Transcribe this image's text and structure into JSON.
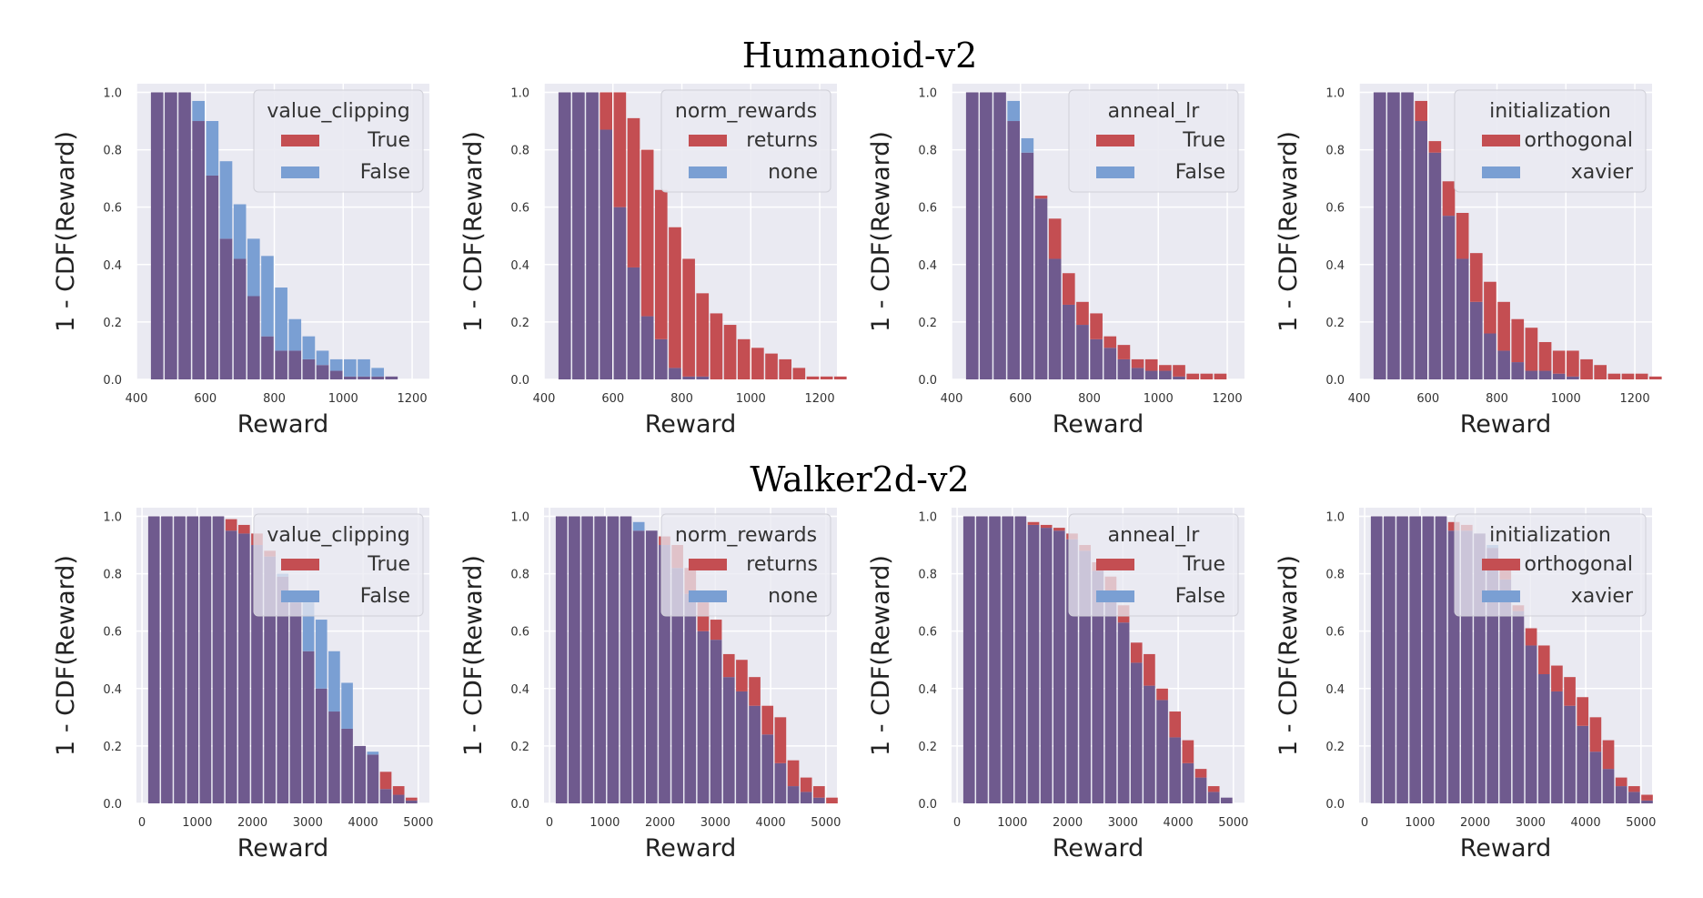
{
  "figure": {
    "row_titles": [
      "Humanoid-v2",
      "Walker2d-v2"
    ]
  },
  "colors": {
    "panel_bg": "#eaeaf2",
    "grid": "#ffffff",
    "series_red": "#c44e52",
    "series_blue": "#7a9fd3",
    "overlap": "#6f5a8e"
  },
  "chart_data": [
    {
      "type": "bar",
      "environment": "Humanoid-v2",
      "x_edges_start": 440,
      "bin_width": 40,
      "xlim": [
        400,
        1250
      ],
      "xticks": [
        400,
        600,
        800,
        1000,
        1200
      ],
      "ylim": [
        0,
        1.03
      ],
      "yticks": [
        "0.0",
        "0.2",
        "0.4",
        "0.6",
        "0.8",
        "1.0"
      ],
      "xlabel": "Reward",
      "ylabel": "1 - CDF(Reward)",
      "legend": {
        "title": "value_clipping",
        "placement": "upper-right",
        "overlaps_bars": false
      },
      "grid": true,
      "series": [
        {
          "name": "True",
          "color": "red",
          "values": [
            1.0,
            1.0,
            1.0,
            0.9,
            0.71,
            0.49,
            0.42,
            0.29,
            0.15,
            0.1,
            0.1,
            0.07,
            0.05,
            0.03,
            0.01,
            0.01,
            0.01,
            0.01,
            0,
            0,
            0,
            0
          ]
        },
        {
          "name": "False",
          "color": "blue",
          "values": [
            1.0,
            1.0,
            1.0,
            0.97,
            0.9,
            0.76,
            0.61,
            0.49,
            0.43,
            0.32,
            0.21,
            0.15,
            0.1,
            0.07,
            0.07,
            0.07,
            0.04,
            0.01,
            0,
            0,
            0,
            0
          ]
        }
      ]
    },
    {
      "type": "bar",
      "environment": "Humanoid-v2",
      "x_edges_start": 440,
      "bin_width": 40,
      "xlim": [
        400,
        1250
      ],
      "xticks": [
        400,
        600,
        800,
        1000,
        1200
      ],
      "ylim": [
        0,
        1.03
      ],
      "yticks": [
        "0.0",
        "0.2",
        "0.4",
        "0.6",
        "0.8",
        "1.0"
      ],
      "xlabel": "Reward",
      "ylabel": "1 - CDF(Reward)",
      "legend": {
        "title": "norm_rewards",
        "placement": "upper-right",
        "overlaps_bars": false
      },
      "grid": true,
      "series": [
        {
          "name": "returns",
          "color": "red",
          "values": [
            1.0,
            1.0,
            1.0,
            1.0,
            1.0,
            0.91,
            0.8,
            0.66,
            0.53,
            0.42,
            0.3,
            0.23,
            0.19,
            0.14,
            0.11,
            0.09,
            0.07,
            0.04,
            0.01,
            0.01,
            0.01
          ]
        },
        {
          "name": "none",
          "color": "blue",
          "values": [
            1.0,
            1.0,
            1.0,
            0.87,
            0.6,
            0.39,
            0.22,
            0.14,
            0.04,
            0.01,
            0.01,
            0,
            0,
            0,
            0,
            0,
            0,
            0,
            0,
            0,
            0
          ]
        }
      ]
    },
    {
      "type": "bar",
      "environment": "Humanoid-v2",
      "x_edges_start": 440,
      "bin_width": 40,
      "xlim": [
        400,
        1250
      ],
      "xticks": [
        400,
        600,
        800,
        1000,
        1200
      ],
      "ylim": [
        0,
        1.03
      ],
      "yticks": [
        "0.0",
        "0.2",
        "0.4",
        "0.6",
        "0.8",
        "1.0"
      ],
      "xlabel": "Reward",
      "ylabel": "1 - CDF(Reward)",
      "legend": {
        "title": "anneal_lr",
        "placement": "upper-right",
        "overlaps_bars": false
      },
      "grid": true,
      "series": [
        {
          "name": "True",
          "color": "red",
          "values": [
            1.0,
            1.0,
            1.0,
            0.9,
            0.79,
            0.64,
            0.56,
            0.37,
            0.27,
            0.23,
            0.15,
            0.12,
            0.07,
            0.07,
            0.05,
            0.05,
            0.02,
            0.02,
            0.02,
            0,
            0
          ]
        },
        {
          "name": "False",
          "color": "blue",
          "values": [
            1.0,
            1.0,
            1.0,
            0.97,
            0.84,
            0.63,
            0.42,
            0.26,
            0.19,
            0.14,
            0.11,
            0.07,
            0.04,
            0.03,
            0.03,
            0.01,
            0,
            0,
            0,
            0,
            0
          ]
        }
      ]
    },
    {
      "type": "bar",
      "environment": "Humanoid-v2",
      "x_edges_start": 440,
      "bin_width": 40,
      "xlim": [
        400,
        1250
      ],
      "xticks": [
        400,
        600,
        800,
        1000,
        1200
      ],
      "ylim": [
        0,
        1.03
      ],
      "yticks": [
        "0.0",
        "0.2",
        "0.4",
        "0.6",
        "0.8",
        "1.0"
      ],
      "xlabel": "Reward",
      "ylabel": "1 - CDF(Reward)",
      "legend": {
        "title": "initialization",
        "placement": "upper-right",
        "overlaps_bars": false
      },
      "grid": true,
      "series": [
        {
          "name": "orthogonal",
          "color": "red",
          "values": [
            1.0,
            1.0,
            1.0,
            0.97,
            0.83,
            0.69,
            0.58,
            0.44,
            0.34,
            0.27,
            0.21,
            0.18,
            0.13,
            0.1,
            0.1,
            0.07,
            0.05,
            0.02,
            0.02,
            0.02,
            0.01
          ]
        },
        {
          "name": "xavier",
          "color": "blue",
          "values": [
            1.0,
            1.0,
            1.0,
            0.9,
            0.79,
            0.57,
            0.42,
            0.27,
            0.16,
            0.1,
            0.06,
            0.03,
            0.03,
            0.02,
            0.01,
            0,
            0,
            0,
            0,
            0,
            0
          ]
        }
      ]
    },
    {
      "type": "bar",
      "environment": "Walker2d-v2",
      "x_edges_start": 100,
      "bin_width": 233,
      "xlim": [
        -100,
        5200
      ],
      "xticks": [
        0,
        1000,
        2000,
        3000,
        4000,
        5000
      ],
      "ylim": [
        0,
        1.03
      ],
      "yticks": [
        "0.0",
        "0.2",
        "0.4",
        "0.6",
        "0.8",
        "1.0"
      ],
      "xlabel": "Reward",
      "ylabel": "1 - CDF(Reward)",
      "legend": {
        "title": "value_clipping",
        "placement": "upper-right",
        "overlaps_bars": true
      },
      "grid": true,
      "series": [
        {
          "name": "True",
          "color": "red",
          "values": [
            1.0,
            1.0,
            1.0,
            1.0,
            1.0,
            1.0,
            0.99,
            0.97,
            0.94,
            0.88,
            0.79,
            0.7,
            0.53,
            0.4,
            0.32,
            0.26,
            0.2,
            0.17,
            0.11,
            0.06,
            0.02,
            0
          ]
        },
        {
          "name": "False",
          "color": "blue",
          "values": [
            1.0,
            1.0,
            1.0,
            1.0,
            1.0,
            1.0,
            0.95,
            0.94,
            0.9,
            0.86,
            0.8,
            0.74,
            0.7,
            0.64,
            0.53,
            0.42,
            0.2,
            0.18,
            0.05,
            0.03,
            0.01,
            0
          ]
        }
      ]
    },
    {
      "type": "bar",
      "environment": "Walker2d-v2",
      "x_edges_start": 100,
      "bin_width": 233,
      "xlim": [
        -100,
        5200
      ],
      "xticks": [
        0,
        1000,
        2000,
        3000,
        4000,
        5000
      ],
      "ylim": [
        0,
        1.03
      ],
      "yticks": [
        "0.0",
        "0.2",
        "0.4",
        "0.6",
        "0.8",
        "1.0"
      ],
      "xlabel": "Reward",
      "ylabel": "1 - CDF(Reward)",
      "legend": {
        "title": "norm_rewards",
        "placement": "upper-right",
        "overlaps_bars": true
      },
      "grid": true,
      "series": [
        {
          "name": "returns",
          "color": "red",
          "values": [
            1.0,
            1.0,
            1.0,
            1.0,
            1.0,
            1.0,
            0.95,
            0.95,
            0.93,
            0.9,
            0.82,
            0.7,
            0.64,
            0.52,
            0.5,
            0.44,
            0.34,
            0.3,
            0.15,
            0.09,
            0.06,
            0.02
          ]
        },
        {
          "name": "none",
          "color": "blue",
          "values": [
            1.0,
            1.0,
            1.0,
            1.0,
            1.0,
            1.0,
            0.98,
            0.95,
            0.9,
            0.82,
            0.73,
            0.6,
            0.57,
            0.44,
            0.39,
            0.34,
            0.24,
            0.14,
            0.06,
            0.04,
            0.02,
            0
          ]
        }
      ]
    },
    {
      "type": "bar",
      "environment": "Walker2d-v2",
      "x_edges_start": 100,
      "bin_width": 233,
      "xlim": [
        -100,
        5200
      ],
      "xticks": [
        0,
        1000,
        2000,
        3000,
        4000,
        5000
      ],
      "ylim": [
        0,
        1.03
      ],
      "yticks": [
        "0.0",
        "0.2",
        "0.4",
        "0.6",
        "0.8",
        "1.0"
      ],
      "xlabel": "Reward",
      "ylabel": "1 - CDF(Reward)",
      "legend": {
        "title": "anneal_lr",
        "placement": "upper-right",
        "overlaps_bars": true
      },
      "grid": true,
      "series": [
        {
          "name": "True",
          "color": "red",
          "values": [
            1.0,
            1.0,
            1.0,
            1.0,
            1.0,
            0.98,
            0.97,
            0.96,
            0.94,
            0.9,
            0.84,
            0.79,
            0.69,
            0.56,
            0.52,
            0.4,
            0.32,
            0.22,
            0.12,
            0.06,
            0.02,
            0
          ]
        },
        {
          "name": "False",
          "color": "blue",
          "values": [
            1.0,
            1.0,
            1.0,
            1.0,
            1.0,
            0.97,
            0.96,
            0.95,
            0.92,
            0.88,
            0.81,
            0.73,
            0.63,
            0.49,
            0.41,
            0.36,
            0.23,
            0.14,
            0.09,
            0.04,
            0.02,
            0
          ]
        }
      ]
    },
    {
      "type": "bar",
      "environment": "Walker2d-v2",
      "x_edges_start": 100,
      "bin_width": 233,
      "xlim": [
        -100,
        5200
      ],
      "xticks": [
        0,
        1000,
        2000,
        3000,
        4000,
        5000
      ],
      "ylim": [
        0,
        1.03
      ],
      "yticks": [
        "0.0",
        "0.2",
        "0.4",
        "0.6",
        "0.8",
        "1.0"
      ],
      "xlabel": "Reward",
      "ylabel": "1 - CDF(Reward)",
      "legend": {
        "title": "initialization",
        "placement": "upper-right",
        "overlaps_bars": true
      },
      "grid": true,
      "series": [
        {
          "name": "orthogonal",
          "color": "red",
          "values": [
            1.0,
            1.0,
            1.0,
            1.0,
            1.0,
            1.0,
            0.98,
            0.97,
            0.94,
            0.89,
            0.82,
            0.69,
            0.61,
            0.55,
            0.48,
            0.44,
            0.37,
            0.3,
            0.22,
            0.09,
            0.06,
            0.03
          ]
        },
        {
          "name": "xavier",
          "color": "blue",
          "values": [
            1.0,
            1.0,
            1.0,
            1.0,
            1.0,
            1.0,
            0.95,
            0.95,
            0.94,
            0.9,
            0.78,
            0.67,
            0.55,
            0.45,
            0.39,
            0.34,
            0.27,
            0.18,
            0.12,
            0.06,
            0.04,
            0.01
          ]
        }
      ]
    }
  ]
}
